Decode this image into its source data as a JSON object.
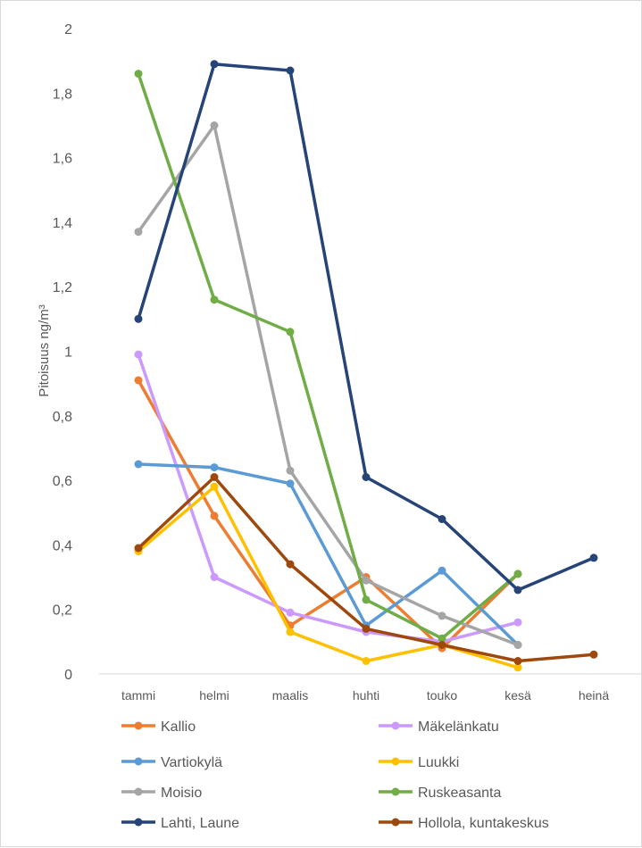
{
  "chart_data": {
    "type": "line",
    "categories": [
      "tammi",
      "helmi",
      "maalis",
      "huhti",
      "touko",
      "kesä",
      "heinä"
    ],
    "ylabel": "Pitoisuus ng/m³",
    "ylim": [
      0,
      2
    ],
    "yticks": [
      "0",
      "0,2",
      "0,4",
      "0,6",
      "0,8",
      "1",
      "1,2",
      "1,4",
      "1,6",
      "1,8",
      "2"
    ],
    "grid": false,
    "legend_position": "bottom",
    "series": [
      {
        "name": "Kallio",
        "color": "#ED7D31",
        "values": [
          0.91,
          0.49,
          0.15,
          0.3,
          0.08,
          0.31,
          null
        ]
      },
      {
        "name": "Mäkelänkatu",
        "color": "#CC99FF",
        "values": [
          0.99,
          0.3,
          0.19,
          0.13,
          0.1,
          0.16,
          null
        ]
      },
      {
        "name": "Vartiokylä",
        "color": "#5B9BD5",
        "values": [
          0.65,
          0.64,
          0.59,
          0.15,
          0.32,
          0.09,
          null
        ]
      },
      {
        "name": "Luukki",
        "color": "#FFC000",
        "values": [
          0.38,
          0.58,
          0.13,
          0.04,
          0.09,
          0.02,
          null
        ]
      },
      {
        "name": "Moisio",
        "color": "#A5A5A5",
        "values": [
          1.37,
          1.7,
          0.63,
          0.29,
          0.18,
          0.09,
          null
        ]
      },
      {
        "name": "Ruskeasanta",
        "color": "#70AD47",
        "values": [
          1.86,
          1.16,
          1.06,
          0.23,
          0.11,
          0.31,
          null
        ]
      },
      {
        "name": "Lahti, Laune",
        "color": "#264478",
        "values": [
          1.1,
          1.89,
          1.87,
          0.61,
          0.48,
          0.26,
          0.36
        ]
      },
      {
        "name": "Hollola, kuntakeskus",
        "color": "#9E480E",
        "values": [
          0.39,
          0.61,
          0.34,
          0.14,
          0.09,
          0.04,
          0.06
        ]
      }
    ]
  }
}
